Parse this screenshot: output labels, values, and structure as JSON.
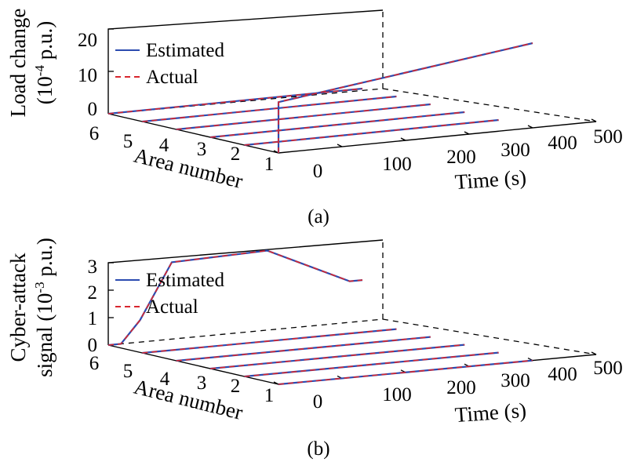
{
  "colors": {
    "estimated": "#2b4bb0",
    "actual": "#d8262e"
  },
  "chart_data": [
    {
      "type": "line3d",
      "caption": "(a)",
      "zlabel_line1": "Load change",
      "zlabel_line2": "(10",
      "zlabel_exp": "-4",
      "zlabel_unit": " p.u.)",
      "xlabel": "Time (s)",
      "ylabel": "Area number",
      "x_ticks": [
        "0",
        "100",
        "200",
        "300",
        "400",
        "500"
      ],
      "y_ticks": [
        "6",
        "5",
        "4",
        "3",
        "2",
        "1"
      ],
      "z_ticks": [
        "0",
        "10",
        "20"
      ],
      "xlim": [
        0,
        500
      ],
      "zlim": [
        0,
        20
      ],
      "legend": [
        "Estimated",
        "Actual"
      ],
      "series": [
        {
          "area": 1,
          "x": [
            0,
            0,
            400
          ],
          "z": [
            0,
            12,
            20
          ]
        },
        {
          "area": 2,
          "x": [
            0,
            400
          ],
          "z": [
            0,
            0
          ]
        },
        {
          "area": 3,
          "x": [
            0,
            400
          ],
          "z": [
            0,
            0
          ]
        },
        {
          "area": 4,
          "x": [
            0,
            400
          ],
          "z": [
            0,
            0
          ]
        },
        {
          "area": 5,
          "x": [
            0,
            400
          ],
          "z": [
            0,
            0
          ]
        },
        {
          "area": 6,
          "x": [
            0,
            400
          ],
          "z": [
            0,
            0
          ]
        }
      ]
    },
    {
      "type": "line3d",
      "caption": "(b)",
      "zlabel_line1": "Cyber-attack",
      "zlabel_line2": "signal (10",
      "zlabel_exp": "-3",
      "zlabel_unit": " p.u.)",
      "xlabel": "Time (s)",
      "ylabel": "Area number",
      "x_ticks": [
        "0",
        "100",
        "200",
        "300",
        "400",
        "500"
      ],
      "y_ticks": [
        "6",
        "5",
        "4",
        "3",
        "2",
        "1"
      ],
      "z_ticks": [
        "0",
        "1",
        "2",
        "3"
      ],
      "xlim": [
        0,
        500
      ],
      "zlim": [
        0,
        3
      ],
      "legend": [
        "Estimated",
        "Actual"
      ],
      "series": [
        {
          "area": 1,
          "x": [
            0,
            400
          ],
          "z": [
            0,
            0
          ]
        },
        {
          "area": 2,
          "x": [
            0,
            400
          ],
          "z": [
            0,
            0
          ]
        },
        {
          "area": 3,
          "x": [
            0,
            400
          ],
          "z": [
            0,
            0
          ]
        },
        {
          "area": 4,
          "x": [
            0,
            400
          ],
          "z": [
            0,
            0
          ]
        },
        {
          "area": 5,
          "x": [
            0,
            400
          ],
          "z": [
            0,
            0
          ]
        },
        {
          "area": 6,
          "x": [
            0,
            20,
            50,
            100,
            250,
            380,
            400
          ],
          "z": [
            0,
            0,
            0.8,
            2.8,
            2.9,
            1.5,
            1.5
          ]
        }
      ]
    }
  ]
}
